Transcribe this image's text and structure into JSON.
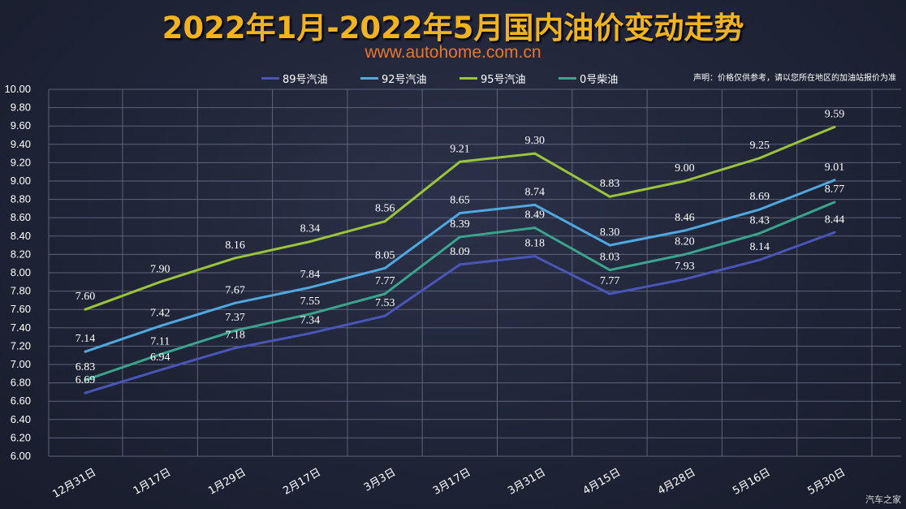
{
  "header": {
    "title": "2022年1月-2022年5月国内油价变动走势",
    "subtitle": "www.autohome.com.cn",
    "disclaimer": "声明：价格仅供参考，请以您所在地区的加油站报价为准",
    "watermark": "汽车之家"
  },
  "colors": {
    "s89": "#4a55b8",
    "s92": "#4fa8e0",
    "s95": "#9bc43a",
    "s0": "#3aa58c"
  },
  "chart_data": {
    "type": "line",
    "title": "2022年1月-2022年5月国内油价变动走势",
    "xlabel": "",
    "ylabel": "",
    "ylim": [
      6.0,
      10.0
    ],
    "y_ticks": [
      "6.00",
      "6.20",
      "6.40",
      "6.60",
      "6.80",
      "7.00",
      "7.20",
      "7.40",
      "7.60",
      "7.80",
      "8.00",
      "8.20",
      "8.40",
      "8.60",
      "8.80",
      "9.00",
      "9.20",
      "9.40",
      "9.60",
      "9.80",
      "10.00"
    ],
    "grid": true,
    "legend_position": "top",
    "categories": [
      "12月31日",
      "1月17日",
      "1月29日",
      "2月17日",
      "3月3日",
      "3月17日",
      "3月31日",
      "4月15日",
      "4月28日",
      "5月16日",
      "5月30日"
    ],
    "series": [
      {
        "name": "89号汽油",
        "color_key": "s89",
        "values": [
          6.69,
          6.94,
          7.18,
          7.34,
          7.53,
          8.09,
          8.18,
          7.77,
          7.93,
          8.14,
          8.44
        ],
        "labels": [
          "6.69",
          "6.94",
          "7.18",
          "7.34",
          "7.53",
          "8.09",
          "8.18",
          "7.77",
          "7.93",
          "8.14",
          "8.44"
        ]
      },
      {
        "name": "92号汽油",
        "color_key": "s92",
        "values": [
          7.14,
          7.42,
          7.67,
          7.84,
          8.05,
          8.65,
          8.74,
          8.3,
          8.46,
          8.69,
          9.01
        ],
        "labels": [
          "7.14",
          "7.42",
          "7.67",
          "7.84",
          "8.05",
          "8.65",
          "8.74",
          "8.30",
          "8.46",
          "8.69",
          "9.01"
        ]
      },
      {
        "name": "95号汽油",
        "color_key": "s95",
        "values": [
          7.6,
          7.9,
          8.16,
          8.34,
          8.56,
          9.21,
          9.3,
          8.83,
          9.0,
          9.25,
          9.59
        ],
        "labels": [
          "7.60",
          "7.90",
          "8.16",
          "8.34",
          "8.56",
          "9.21",
          "9.30",
          "8.83",
          "9.00",
          "9.25",
          "9.59"
        ]
      },
      {
        "name": "0号柴油",
        "color_key": "s0",
        "values": [
          6.83,
          7.11,
          7.37,
          7.55,
          7.77,
          8.39,
          8.49,
          8.03,
          8.2,
          8.43,
          8.77
        ],
        "labels": [
          "6.83",
          "7.11",
          "7.37",
          "7.55",
          "7.77",
          "8.39",
          "8.49",
          "8.03",
          "8.20",
          "8.43",
          "8.77"
        ]
      }
    ]
  }
}
